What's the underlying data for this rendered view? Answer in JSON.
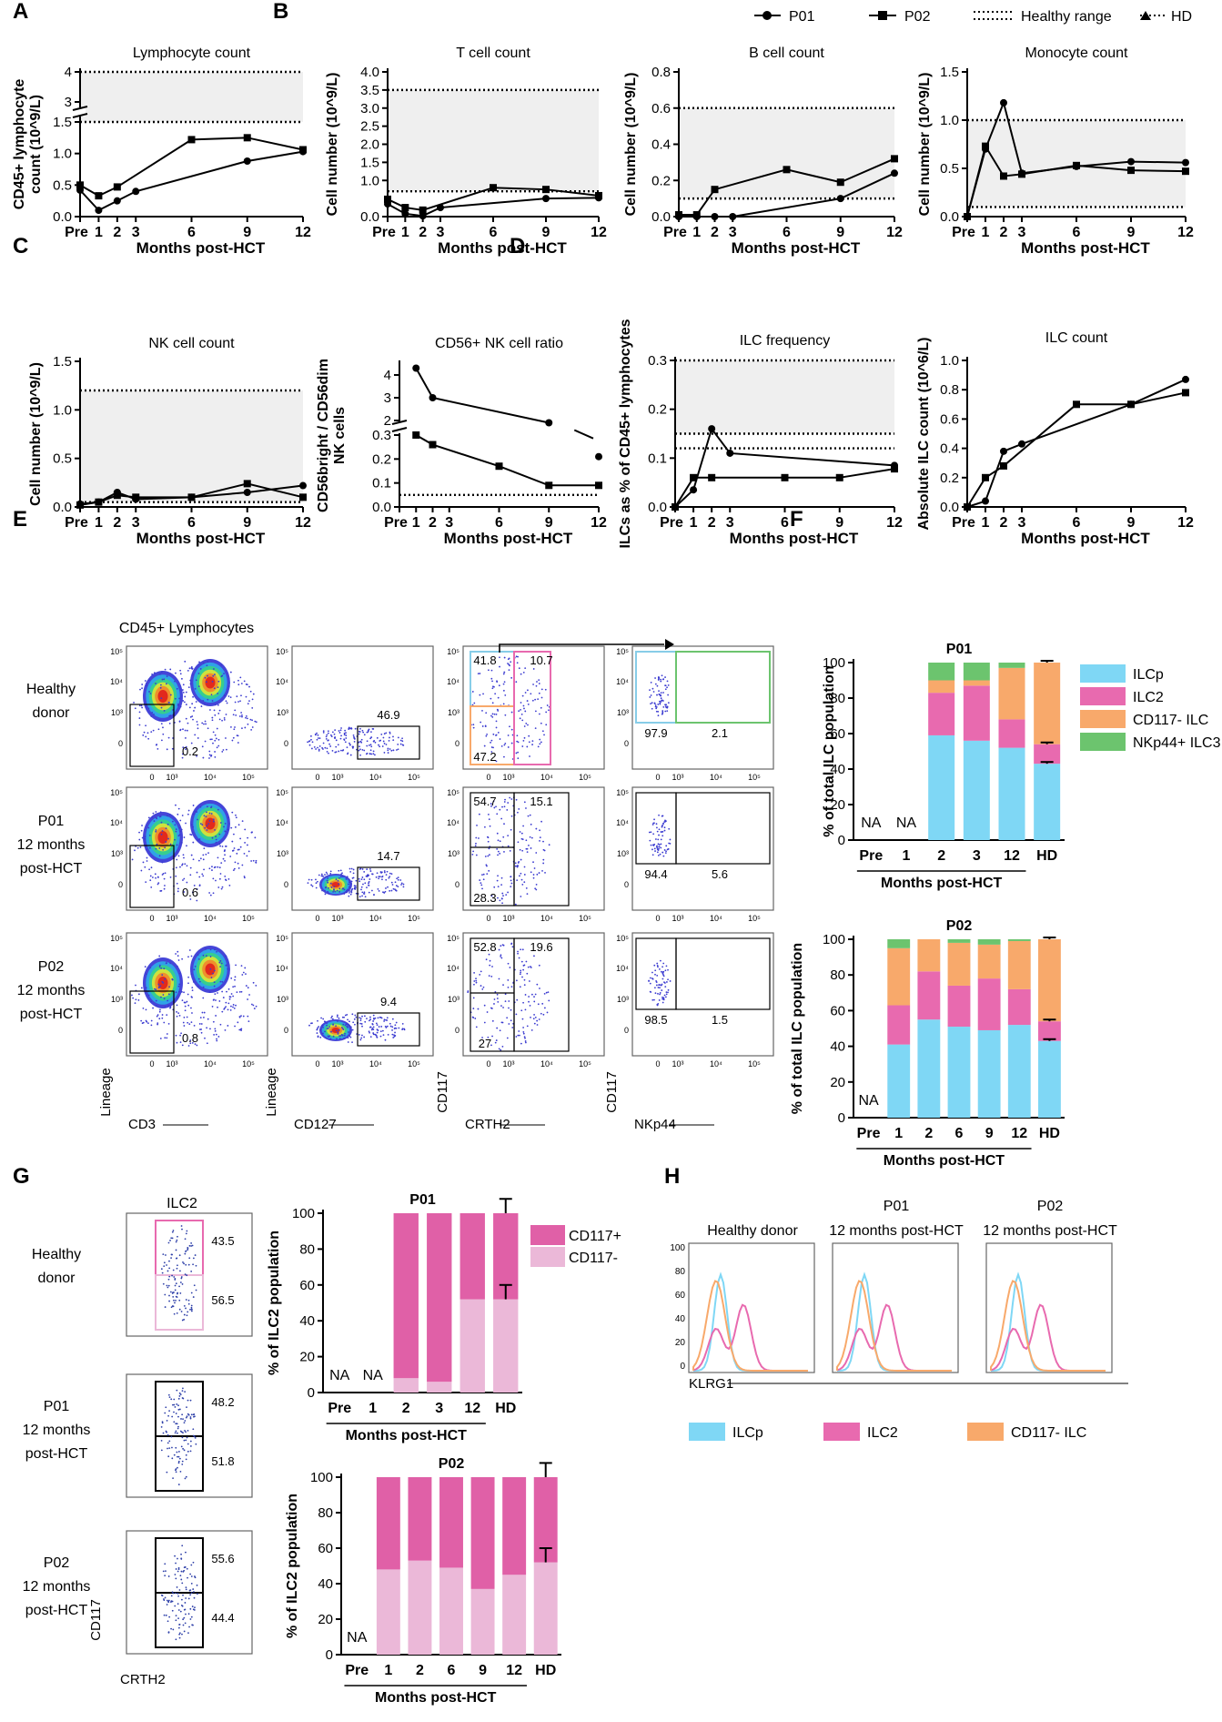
{
  "panel_labels": [
    "A",
    "B",
    "C",
    "D",
    "E",
    "F",
    "G",
    "H"
  ],
  "legend_top": {
    "items": [
      {
        "label": "P01",
        "marker": "circle"
      },
      {
        "label": "P02",
        "marker": "square"
      },
      {
        "label": "Healthy range",
        "marker": "double-dotted"
      },
      {
        "label": "HD",
        "marker": "triangle-dotted"
      }
    ]
  },
  "colors": {
    "ilcp": "#7fd7f5",
    "ilc2": "#e86aaf",
    "cd117neg": "#f8a96b",
    "nkp44": "#6cc46e",
    "cd117pos": "#e060a7",
    "cd117neg_ilc2": "#ebb8d8",
    "range": "#efefef"
  },
  "months_label": "Months post-HCT",
  "chart_data": [
    {
      "id": "A",
      "type": "line",
      "title": "Lymphocyte count",
      "ylabel": "CD45+ lymphocyte count (10^9/L)",
      "xlabel": "Months post-HCT",
      "x": [
        0,
        1,
        2,
        3,
        6,
        9,
        12
      ],
      "xticks": [
        "Pre",
        "1",
        "2",
        "3",
        "6",
        "9",
        "12"
      ],
      "ylim_lower": [
        0,
        1.5
      ],
      "yticks_lower": [
        "0.0",
        "0.5",
        "1.0",
        "1.5"
      ],
      "yticks_upper": [
        "3",
        "4"
      ],
      "healthy_range": [
        1.5,
        4
      ],
      "series": [
        {
          "name": "P01",
          "marker": "circle",
          "x": [
            0,
            1,
            2,
            3,
            9,
            12
          ],
          "values": [
            0.42,
            0.1,
            0.25,
            0.4,
            0.88,
            1.03
          ]
        },
        {
          "name": "P02",
          "marker": "square",
          "x": [
            0,
            1,
            2,
            6,
            9,
            12
          ],
          "values": [
            0.5,
            0.33,
            0.47,
            1.22,
            1.25,
            1.06
          ]
        }
      ]
    },
    {
      "id": "B1",
      "type": "line",
      "title": "T cell count",
      "ylabel": "Cell number (10^9/L)",
      "xlabel": "Months post-HCT",
      "x": [
        0,
        1,
        2,
        3,
        6,
        9,
        12
      ],
      "xticks": [
        "Pre",
        "1",
        "2",
        "3",
        "6",
        "9",
        "12"
      ],
      "ylim": [
        0,
        4.0
      ],
      "yticks": [
        "0.0",
        "1.0",
        "1.5",
        "2.0",
        "2.5",
        "3.0",
        "3.5",
        "4.0"
      ],
      "healthy_range": [
        0.7,
        3.5
      ],
      "series": [
        {
          "name": "P01",
          "marker": "circle",
          "x": [
            0,
            1,
            2,
            3,
            9,
            12
          ],
          "values": [
            0.35,
            0.08,
            0.02,
            0.25,
            0.5,
            0.52
          ]
        },
        {
          "name": "P02",
          "marker": "square",
          "x": [
            0,
            1,
            2,
            6,
            9,
            12
          ],
          "values": [
            0.48,
            0.25,
            0.18,
            0.8,
            0.75,
            0.58
          ]
        }
      ]
    },
    {
      "id": "B2",
      "type": "line",
      "title": "B cell count",
      "ylabel": "Cell number (10^9/L)",
      "xlabel": "Months post-HCT",
      "x": [
        0,
        1,
        2,
        3,
        6,
        9,
        12
      ],
      "xticks": [
        "Pre",
        "1",
        "2",
        "3",
        "6",
        "9",
        "12"
      ],
      "ylim": [
        0,
        0.8
      ],
      "yticks": [
        "0.0",
        "0.2",
        "0.4",
        "0.6",
        "0.8"
      ],
      "healthy_range": [
        0.1,
        0.6
      ],
      "series": [
        {
          "name": "P01",
          "marker": "circle",
          "x": [
            0,
            1,
            2,
            3,
            9,
            12
          ],
          "values": [
            0.0,
            0.0,
            0.0,
            0.0,
            0.1,
            0.24
          ]
        },
        {
          "name": "P02",
          "marker": "square",
          "x": [
            0,
            1,
            2,
            6,
            9,
            12
          ],
          "values": [
            0.01,
            0.01,
            0.15,
            0.26,
            0.19,
            0.32
          ]
        }
      ]
    },
    {
      "id": "B3",
      "type": "line",
      "title": "Monocyte count",
      "ylabel": "Cell number (10^9/L)",
      "xlabel": "Months post-HCT",
      "x": [
        0,
        1,
        2,
        3,
        6,
        9,
        12
      ],
      "xticks": [
        "Pre",
        "1",
        "2",
        "3",
        "6",
        "9",
        "12"
      ],
      "ylim": [
        0,
        1.5
      ],
      "yticks": [
        "0.0",
        "0.5",
        "1.0",
        "1.5"
      ],
      "healthy_range": [
        0.1,
        1.0
      ],
      "series": [
        {
          "name": "P01",
          "marker": "circle",
          "x": [
            0,
            1,
            2,
            3,
            6,
            9,
            12
          ],
          "values": [
            0.0,
            0.7,
            1.18,
            0.45,
            0.52,
            0.57,
            0.56
          ]
        },
        {
          "name": "P02",
          "marker": "square",
          "x": [
            0,
            1,
            2,
            3,
            6,
            9,
            12
          ],
          "values": [
            0.0,
            0.73,
            0.42,
            0.44,
            0.53,
            0.48,
            0.47
          ]
        }
      ]
    },
    {
      "id": "C1",
      "type": "line",
      "title": "NK cell count",
      "ylabel": "Cell number (10^9/L)",
      "xlabel": "Months post-HCT",
      "x": [
        0,
        1,
        2,
        3,
        6,
        9,
        12
      ],
      "xticks": [
        "Pre",
        "1",
        "2",
        "3",
        "6",
        "9",
        "12"
      ],
      "ylim": [
        0,
        1.5
      ],
      "yticks": [
        "0.0",
        "0.5",
        "1.0",
        "1.5"
      ],
      "healthy_range": [
        0.05,
        1.2
      ],
      "series": [
        {
          "name": "P01",
          "marker": "circle",
          "x": [
            0,
            1,
            2,
            3,
            6,
            9,
            12
          ],
          "values": [
            0.03,
            0.05,
            0.15,
            0.08,
            0.1,
            0.15,
            0.22
          ]
        },
        {
          "name": "P02",
          "marker": "square",
          "x": [
            0,
            1,
            2,
            3,
            6,
            9,
            12
          ],
          "values": [
            0.02,
            0.05,
            0.12,
            0.1,
            0.1,
            0.24,
            0.1
          ]
        }
      ]
    },
    {
      "id": "C2",
      "type": "line",
      "title": "CD56+ NK cell ratio",
      "ylabel": "CD56bright / CD56dim NK cells",
      "xlabel": "Months post-HCT",
      "x": [
        0,
        1,
        2,
        3,
        6,
        9,
        12
      ],
      "xticks": [
        "Pre",
        "1",
        "2",
        "3",
        "6",
        "9",
        "12"
      ],
      "yticks_lower": [
        "0.0",
        "0.1",
        "0.2",
        "0.3"
      ],
      "yticks_upper": [
        "2",
        "3",
        "4"
      ],
      "healthy_range_line": 0.05,
      "series": [
        {
          "name": "P01",
          "marker": "circle",
          "x": [
            1,
            2,
            9,
            12
          ],
          "values": [
            4.3,
            3.0,
            1.9,
            0.21
          ],
          "gap_after_index": 2
        },
        {
          "name": "P02",
          "marker": "square",
          "x": [
            1,
            2,
            6,
            9,
            12
          ],
          "values": [
            0.3,
            0.26,
            0.17,
            0.09,
            0.09
          ]
        }
      ]
    },
    {
      "id": "D1",
      "type": "line",
      "title": "ILC frequency",
      "ylabel": "ILCs as % of CD45+ lymphocytes",
      "xlabel": "Months post-HCT",
      "x": [
        0,
        1,
        2,
        3,
        6,
        9,
        12
      ],
      "xticks": [
        "Pre",
        "1",
        "2",
        "3",
        "6",
        "9",
        "12"
      ],
      "ylim": [
        0,
        0.3
      ],
      "yticks": [
        "0.0",
        "0.1",
        "0.2",
        "0.3"
      ],
      "healthy_range": [
        0.15,
        0.3
      ],
      "hd_line": 0.12,
      "series": [
        {
          "name": "P01",
          "marker": "circle",
          "x": [
            0,
            1,
            2,
            3,
            12
          ],
          "values": [
            0.0,
            0.035,
            0.16,
            0.11,
            0.085
          ]
        },
        {
          "name": "P02",
          "marker": "square",
          "x": [
            0,
            1,
            2,
            6,
            9,
            12
          ],
          "values": [
            0.0,
            0.06,
            0.06,
            0.06,
            0.06,
            0.078
          ]
        }
      ]
    },
    {
      "id": "D2",
      "type": "line",
      "title": "ILC count",
      "ylabel": "Absolute ILC count (10^6/L)",
      "xlabel": "Months post-HCT",
      "x": [
        0,
        1,
        2,
        3,
        6,
        9,
        12
      ],
      "xticks": [
        "Pre",
        "1",
        "2",
        "3",
        "6",
        "9",
        "12"
      ],
      "ylim": [
        0,
        1.0
      ],
      "yticks": [
        "0.0",
        "0.2",
        "0.4",
        "0.6",
        "0.8",
        "1.0"
      ],
      "series": [
        {
          "name": "P01",
          "marker": "circle",
          "x": [
            0,
            1,
            2,
            3,
            9,
            12
          ],
          "values": [
            0.0,
            0.04,
            0.38,
            0.43,
            0.7,
            0.87
          ]
        },
        {
          "name": "P02",
          "marker": "square",
          "x": [
            0,
            1,
            2,
            6,
            9,
            12
          ],
          "values": [
            0.0,
            0.2,
            0.28,
            0.7,
            0.7,
            0.78
          ]
        }
      ]
    },
    {
      "id": "F1",
      "type": "bar",
      "stacked": true,
      "title": "P01",
      "ylabel": "% of total ILC population",
      "xlabel": "Months post-HCT",
      "categories": [
        "Pre",
        "1",
        "2",
        "3",
        "12",
        "HD"
      ],
      "na": [
        "Pre",
        "1"
      ],
      "ylim": [
        0,
        100
      ],
      "yticks": [
        "0",
        "20",
        "40",
        "60",
        "80",
        "100"
      ],
      "series": [
        {
          "name": "ILCp",
          "values": [
            0,
            0,
            59,
            56,
            52,
            43
          ]
        },
        {
          "name": "ILC2",
          "values": [
            0,
            0,
            24,
            31,
            16,
            11
          ]
        },
        {
          "name": "CD117- ILC",
          "values": [
            0,
            0,
            7,
            3,
            29,
            46
          ]
        },
        {
          "name": "NKp44+ ILC3",
          "values": [
            0,
            0,
            10,
            10,
            3,
            0
          ]
        }
      ]
    },
    {
      "id": "F2",
      "type": "bar",
      "stacked": true,
      "title": "P02",
      "ylabel": "% of total ILC population",
      "xlabel": "Months post-HCT",
      "categories": [
        "Pre",
        "1",
        "2",
        "6",
        "9",
        "12",
        "HD"
      ],
      "na": [
        "Pre"
      ],
      "ylim": [
        0,
        100
      ],
      "yticks": [
        "0",
        "20",
        "40",
        "60",
        "80",
        "100"
      ],
      "series": [
        {
          "name": "ILCp",
          "values": [
            0,
            41,
            55,
            51,
            49,
            52,
            43
          ]
        },
        {
          "name": "ILC2",
          "values": [
            0,
            22,
            27,
            23,
            29,
            20,
            11
          ]
        },
        {
          "name": "CD117- ILC",
          "values": [
            0,
            32,
            18,
            24,
            19,
            27,
            46
          ]
        },
        {
          "name": "NKp44+ ILC3",
          "values": [
            0,
            5,
            0,
            2,
            3,
            1,
            0
          ]
        }
      ]
    },
    {
      "id": "G1",
      "type": "bar",
      "stacked": true,
      "title": "P01",
      "ylabel": "% of ILC2 population",
      "xlabel": "Months post-HCT",
      "categories": [
        "Pre",
        "1",
        "2",
        "3",
        "12",
        "HD"
      ],
      "na": [
        "Pre",
        "1"
      ],
      "ylim": [
        0,
        100
      ],
      "yticks": [
        "0",
        "20",
        "40",
        "60",
        "80",
        "100"
      ],
      "series": [
        {
          "name": "CD117-",
          "values": [
            0,
            0,
            8,
            6,
            52,
            52
          ]
        },
        {
          "name": "CD117+",
          "values": [
            0,
            0,
            92,
            94,
            48,
            48
          ]
        }
      ]
    },
    {
      "id": "G2",
      "type": "bar",
      "stacked": true,
      "title": "P02",
      "ylabel": "% of ILC2 population",
      "xlabel": "Months post-HCT",
      "categories": [
        "Pre",
        "1",
        "2",
        "6",
        "9",
        "12",
        "HD"
      ],
      "na": [
        "Pre"
      ],
      "ylim": [
        0,
        100
      ],
      "yticks": [
        "0",
        "20",
        "40",
        "60",
        "80",
        "100"
      ],
      "series": [
        {
          "name": "CD117-",
          "values": [
            0,
            48,
            53,
            49,
            37,
            45,
            52
          ]
        },
        {
          "name": "CD117+",
          "values": [
            0,
            52,
            47,
            51,
            63,
            55,
            48
          ]
        }
      ]
    }
  ],
  "legend_F": [
    "ILCp",
    "ILC2",
    "CD117- ILC",
    "NKp44+ ILC3"
  ],
  "legend_G": [
    "CD117+",
    "CD117-"
  ],
  "legend_H": [
    "ILCp",
    "ILC2",
    "CD117- ILC"
  ],
  "flow_E": {
    "column_title": "CD45+ Lymphocytes",
    "rows": [
      {
        "label": "Healthy donor",
        "p1": "0.2",
        "p2": "46.9",
        "p3a": "41.8",
        "p3b": "10.7",
        "p3c": "47.2",
        "p4a": "97.9",
        "p4b": "2.1"
      },
      {
        "label": "P01 12 months post-HCT",
        "p1": "0.6",
        "p2": "14.7",
        "p3a": "54.7",
        "p3b": "15.1",
        "p3c": "28.3",
        "p4a": "94.4",
        "p4b": "5.6"
      },
      {
        "label": "P02 12 months post-HCT",
        "p1": "0.8",
        "p2": "9.4",
        "p3a": "52.8",
        "p3b": "19.6",
        "p3c": "27",
        "p4a": "98.5",
        "p4b": "1.5"
      }
    ],
    "axes": [
      {
        "x": "CD3",
        "y": "Lineage"
      },
      {
        "x": "CD127",
        "y": "Lineage"
      },
      {
        "x": "CRTH2",
        "y": "CD117"
      },
      {
        "x": "NKp44",
        "y": "CD117"
      }
    ]
  },
  "flow_G": {
    "title": "ILC2",
    "rows": [
      {
        "label": "Healthy donor",
        "top": "43.5",
        "bottom": "56.5"
      },
      {
        "label": "P01 12 months post-HCT",
        "top": "48.2",
        "bottom": "51.8"
      },
      {
        "label": "P02 12 months post-HCT",
        "top": "55.6",
        "bottom": "44.4"
      }
    ],
    "xaxis": "CRTH2",
    "yaxis": "CD117"
  },
  "histo_H": {
    "titles": [
      "Healthy donor",
      "P01 12 months post-HCT",
      "P02 12 months post-HCT"
    ],
    "xaxis": "KLRG1",
    "yticks": [
      "0",
      "20",
      "40",
      "60",
      "80",
      "100"
    ]
  }
}
